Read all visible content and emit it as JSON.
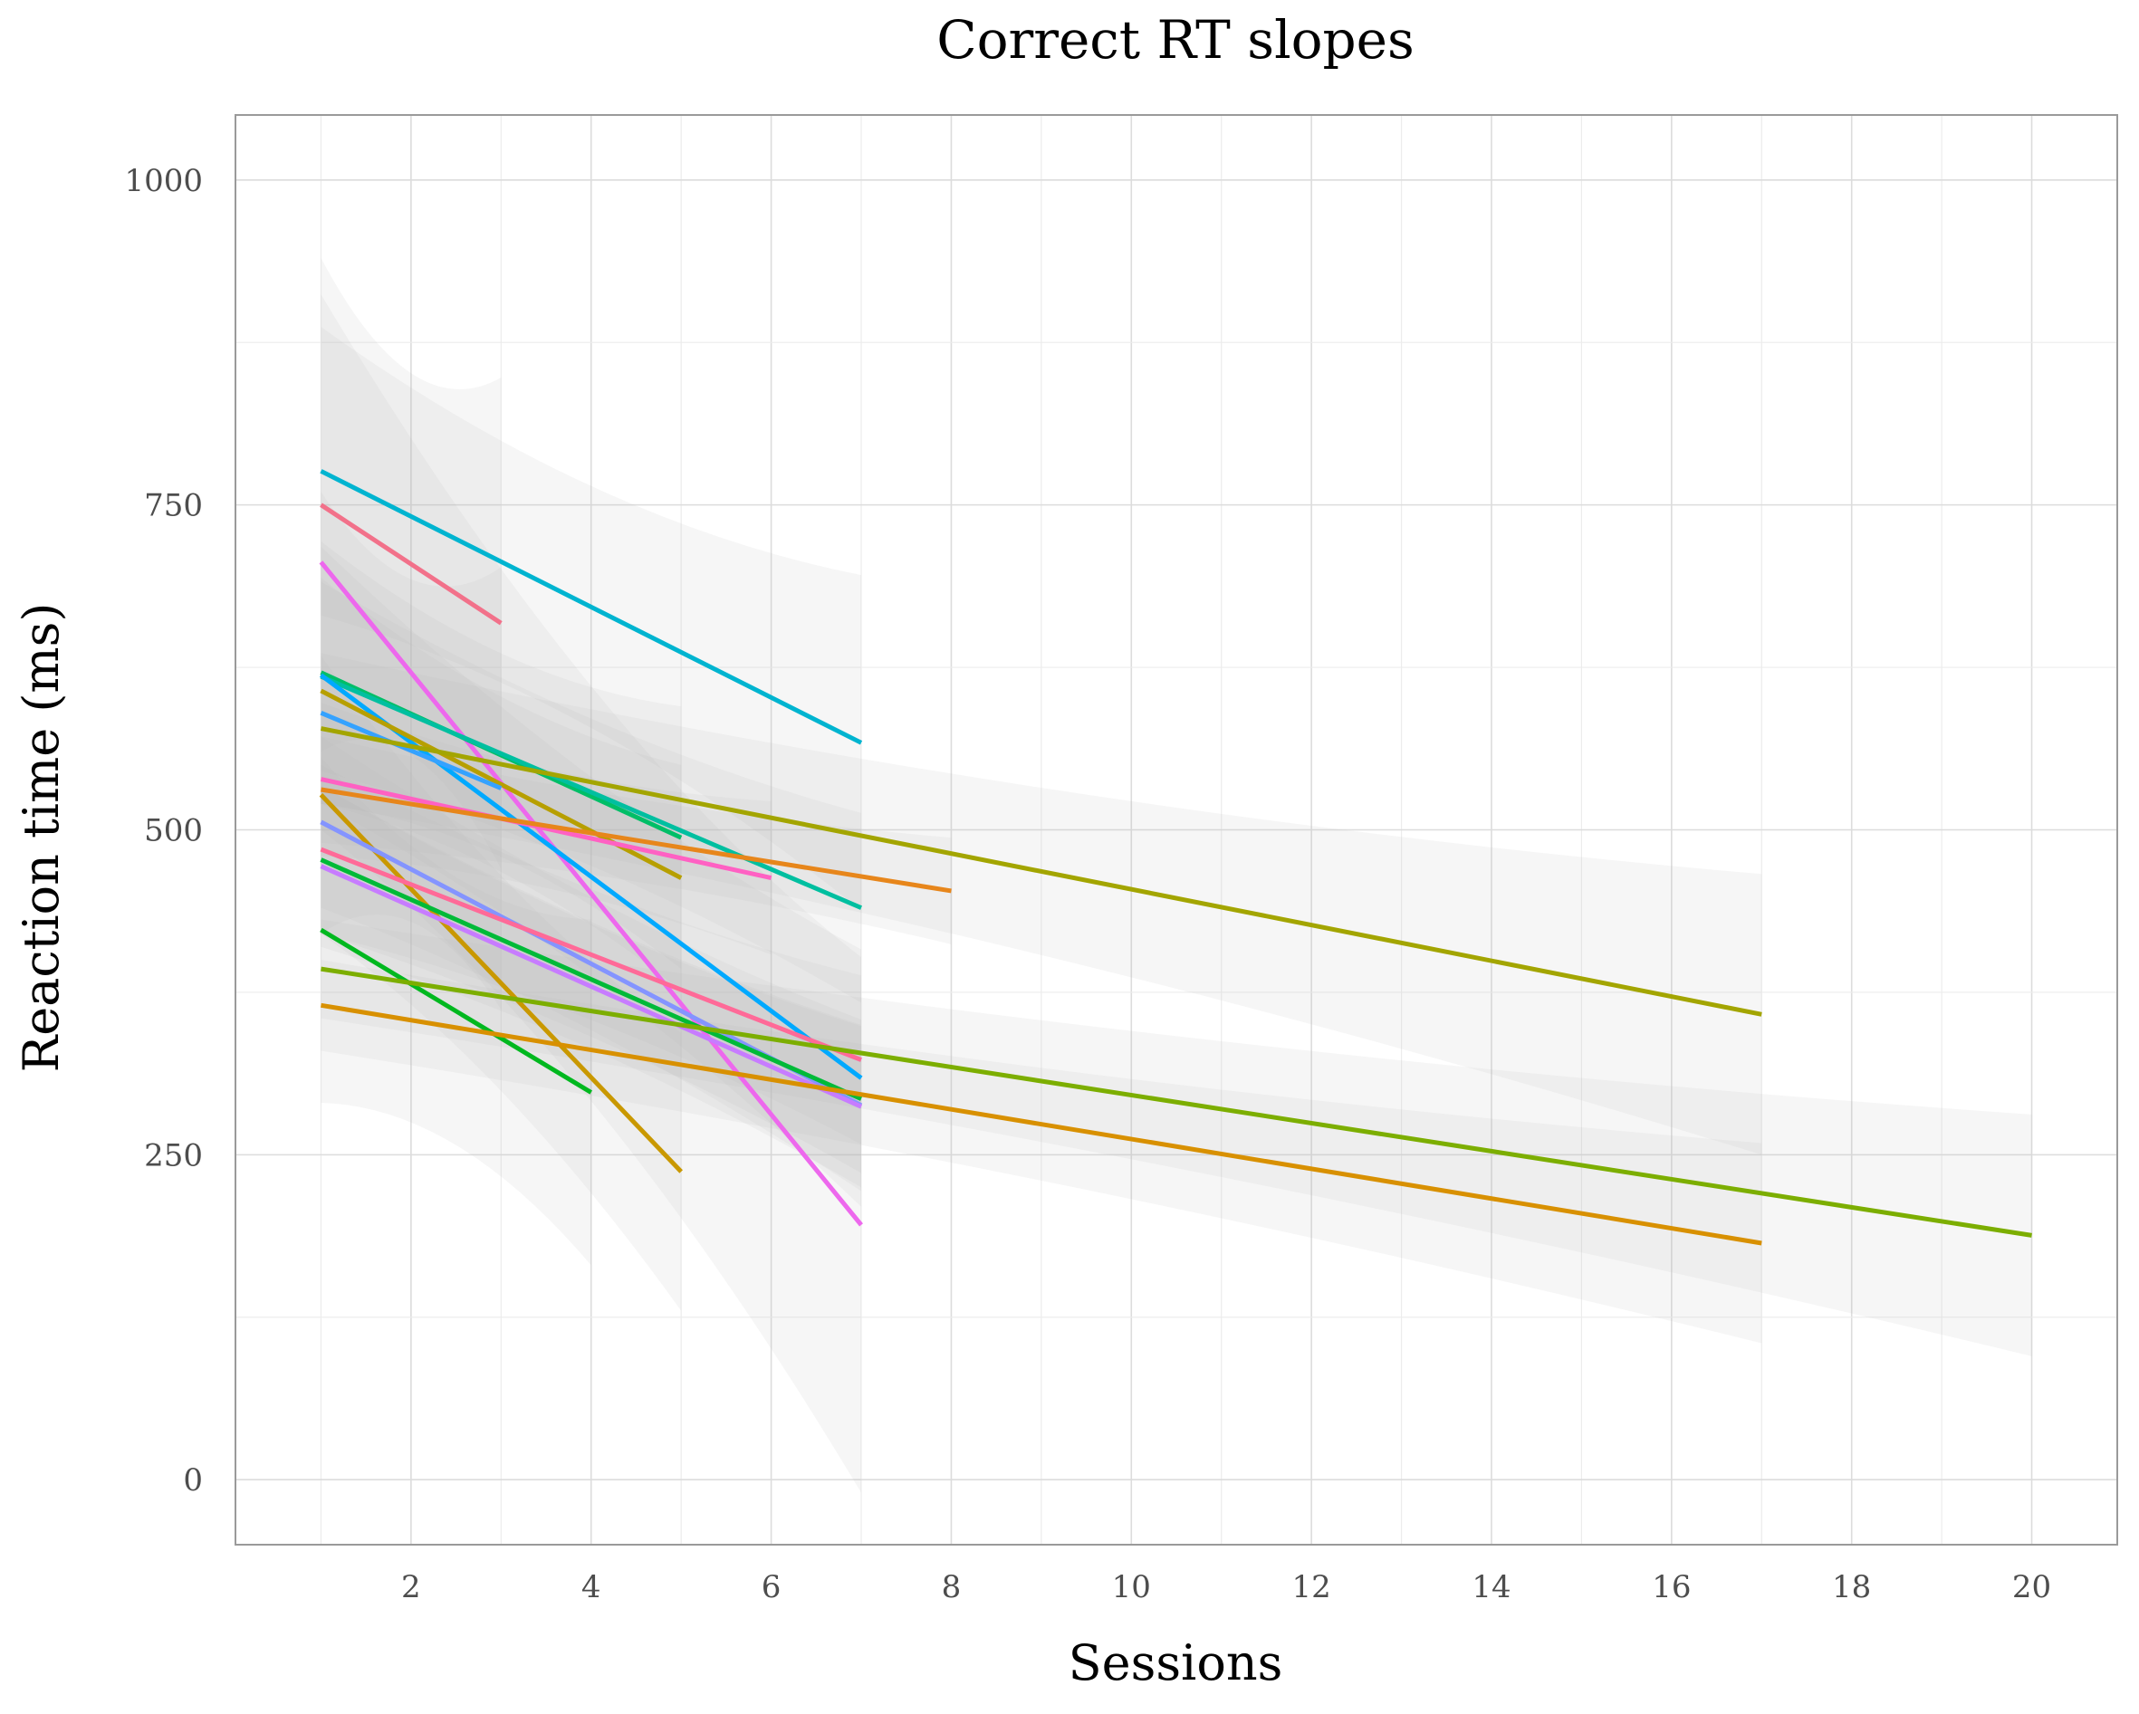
{
  "chart_data": {
    "type": "line",
    "title": "Correct RT slopes",
    "xlabel": "Sessions",
    "ylabel": "Reaction time (ms)",
    "xlim": [
      0.05,
      20.95
    ],
    "ylim": [
      -50,
      1050
    ],
    "x_ticks": [
      2,
      4,
      6,
      8,
      10,
      12,
      14,
      16,
      18,
      20
    ],
    "y_ticks": [
      0,
      250,
      500,
      750,
      1000
    ],
    "x_tick_labels": [
      "2",
      "4",
      "6",
      "8",
      "10",
      "12",
      "14",
      "16",
      "18",
      "20"
    ],
    "y_tick_labels": [
      "0",
      "250",
      "500",
      "750",
      "1000"
    ],
    "grid": true,
    "legend": "none",
    "series_style": "linear fit with grey confidence band",
    "series": [
      {
        "color": "#00B4D0",
        "x": [
          1,
          7
        ],
        "y": [
          776,
          567
        ],
        "ci_start": [
          665,
          887
        ],
        "ci_end": [
          438,
          696
        ]
      },
      {
        "color": "#F2718A",
        "x": [
          1,
          3
        ],
        "y": [
          750,
          659
        ],
        "ci_start": [
          560,
          940
        ],
        "ci_end": [
          470,
          848
        ]
      },
      {
        "color": "#ED68ED",
        "x": [
          1,
          7
        ],
        "y": [
          706,
          196
        ],
        "ci_start": [
          500,
          912
        ],
        "ci_end": [
          -10,
          402
        ]
      },
      {
        "color": "#00BE67",
        "x": [
          1,
          5
        ],
        "y": [
          621,
          494
        ],
        "ci_start": [
          520,
          722
        ],
        "ci_end": [
          393,
          595
        ]
      },
      {
        "color": "#00BFA0",
        "x": [
          1,
          7
        ],
        "y": [
          618,
          440
        ],
        "ci_start": [
          545,
          691
        ],
        "ci_end": [
          367,
          513
        ]
      },
      {
        "color": "#00A9FF",
        "x": [
          1,
          7
        ],
        "y": [
          619,
          309
        ],
        "ci_start": [
          520,
          718
        ],
        "ci_end": [
          210,
          408
        ]
      },
      {
        "color": "#B79F00",
        "x": [
          1,
          5
        ],
        "y": [
          607,
          463
        ],
        "ci_start": [
          520,
          694
        ],
        "ci_end": [
          376,
          550
        ]
      },
      {
        "color": "#35A2FF",
        "x": [
          1,
          3
        ],
        "y": [
          590,
          532
        ],
        "ci_start": [
          420,
          760
        ],
        "ci_end": [
          362,
          702
        ]
      },
      {
        "color": "#A3A500",
        "x": [
          1,
          17
        ],
        "y": [
          578,
          358
        ],
        "ci_start": [
          520,
          636
        ],
        "ci_end": [
          250,
          466
        ]
      },
      {
        "color": "#FF61C3",
        "x": [
          1,
          6
        ],
        "y": [
          539,
          463
        ],
        "ci_start": [
          480,
          598
        ],
        "ci_end": [
          404,
          522
        ]
      },
      {
        "color": "#E7861B",
        "x": [
          1,
          8
        ],
        "y": [
          531,
          453
        ],
        "ci_start": [
          490,
          572
        ],
        "ci_end": [
          412,
          494
        ]
      },
      {
        "color": "#C99800",
        "x": [
          1,
          5
        ],
        "y": [
          527,
          237
        ],
        "ci_start": [
          420,
          634
        ],
        "ci_end": [
          130,
          344
        ]
      },
      {
        "color": "#8494FF",
        "x": [
          1,
          7
        ],
        "y": [
          506,
          288
        ],
        "ci_start": [
          440,
          572
        ],
        "ci_end": [
          222,
          354
        ]
      },
      {
        "color": "#FF6A98",
        "x": [
          1,
          7
        ],
        "y": [
          485,
          323
        ],
        "ci_start": [
          420,
          550
        ],
        "ci_end": [
          258,
          388
        ]
      },
      {
        "color": "#00BA38",
        "x": [
          1,
          7
        ],
        "y": [
          477,
          293
        ],
        "ci_start": [
          420,
          534
        ],
        "ci_end": [
          236,
          350
        ]
      },
      {
        "color": "#C77CFF",
        "x": [
          1,
          7
        ],
        "y": [
          472,
          287
        ],
        "ci_start": [
          410,
          534
        ],
        "ci_end": [
          225,
          349
        ]
      },
      {
        "color": "#00B81F",
        "x": [
          1,
          4
        ],
        "y": [
          423,
          298
        ],
        "ci_start": [
          290,
          556
        ],
        "ci_end": [
          165,
          431
        ]
      },
      {
        "color": "#7CAE00",
        "x": [
          1,
          20
        ],
        "y": [
          393,
          188
        ],
        "ci_start": [
          355,
          431
        ],
        "ci_end": [
          95,
          281
        ]
      },
      {
        "color": "#D89000",
        "x": [
          1,
          17
        ],
        "y": [
          365,
          182
        ],
        "ci_start": [
          330,
          400
        ],
        "ci_end": [
          105,
          259
        ]
      }
    ]
  }
}
